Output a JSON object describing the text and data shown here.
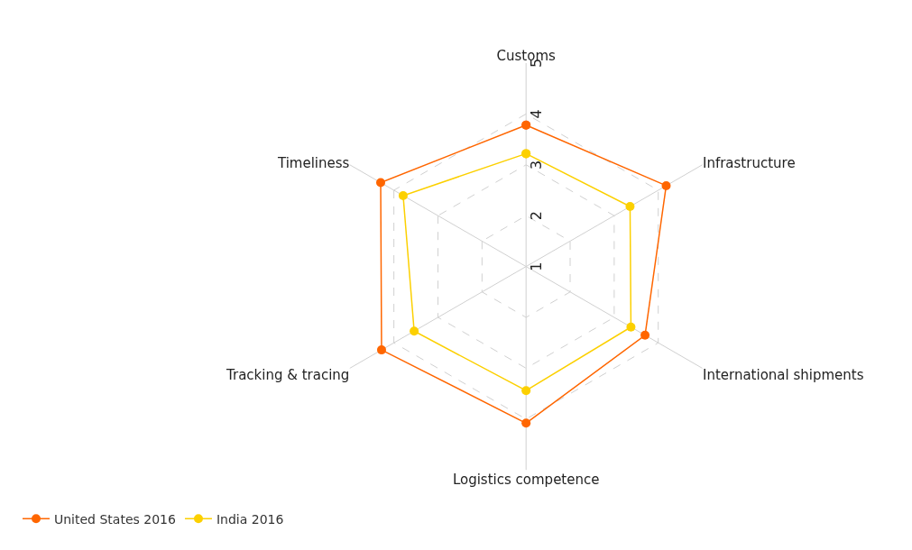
{
  "chart_data": {
    "type": "radar",
    "categories": [
      "Customs",
      "Infrastructure",
      "International shipments",
      "Logistics competence",
      "Tracking & tracing",
      "Timeliness"
    ],
    "series": [
      {
        "name": "United States 2016",
        "color": "#ff6600",
        "values": [
          3.78,
          4.18,
          3.7,
          4.08,
          4.28,
          4.3
        ]
      },
      {
        "name": "India 2016",
        "color": "#fcd000",
        "values": [
          3.22,
          3.36,
          3.38,
          3.44,
          3.54,
          3.79
        ]
      }
    ],
    "ylim": [
      1,
      5
    ],
    "yticks": [
      1,
      2,
      3,
      4,
      5
    ],
    "grid": true,
    "legend": "bottom left",
    "marker": "circle",
    "line_style": "solid"
  }
}
